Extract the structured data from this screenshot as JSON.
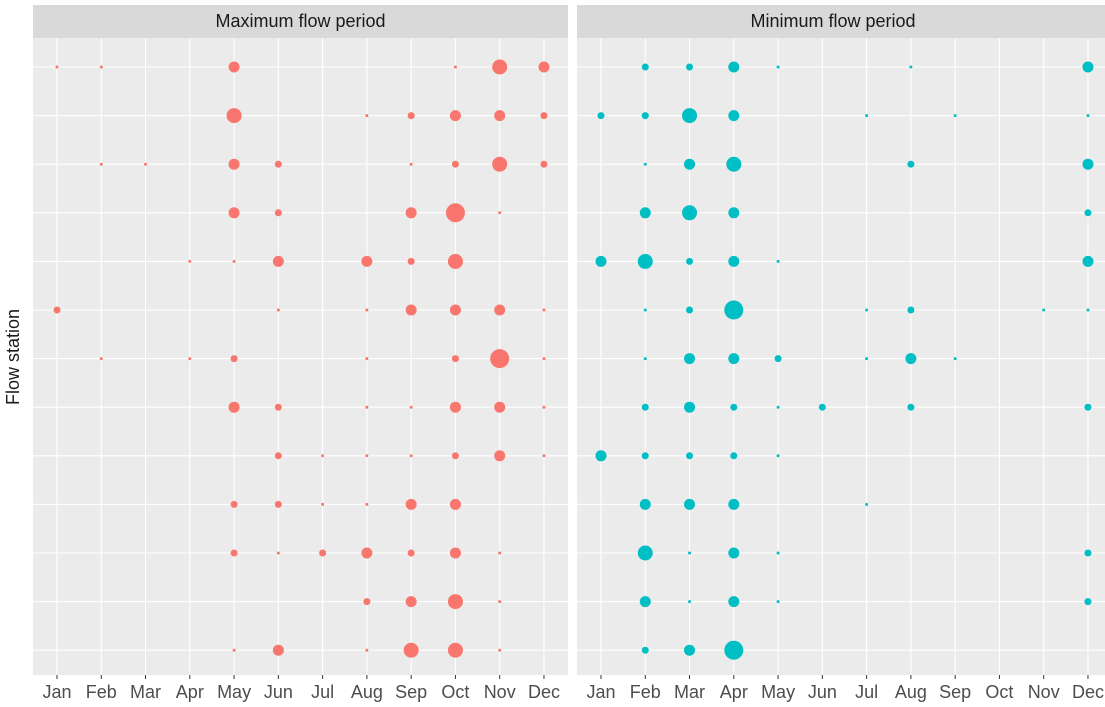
{
  "chart_data": [
    {
      "type": "dot",
      "title": "Maximum flow period",
      "y_label": "Flow station",
      "color": "#f8766d",
      "grid": true,
      "categories": [
        "Jan",
        "Feb",
        "Mar",
        "Apr",
        "May",
        "Jun",
        "Jul",
        "Aug",
        "Sep",
        "Oct",
        "Nov",
        "Dec"
      ],
      "series": [
        {
          "values": [
            1,
            1,
            null,
            null,
            3,
            null,
            null,
            null,
            null,
            1,
            4,
            3
          ]
        },
        {
          "values": [
            null,
            null,
            null,
            null,
            4,
            null,
            null,
            1,
            2,
            3,
            3,
            2
          ]
        },
        {
          "values": [
            null,
            1,
            1,
            null,
            3,
            2,
            null,
            null,
            1,
            2,
            4,
            2
          ]
        },
        {
          "values": [
            null,
            null,
            null,
            null,
            3,
            2,
            null,
            null,
            3,
            5,
            1,
            null
          ]
        },
        {
          "values": [
            null,
            null,
            null,
            1,
            1,
            3,
            null,
            3,
            2,
            4,
            null,
            null
          ]
        },
        {
          "values": [
            2,
            null,
            null,
            null,
            null,
            1,
            null,
            1,
            3,
            3,
            3,
            1
          ]
        },
        {
          "values": [
            null,
            1,
            null,
            1,
            2,
            null,
            null,
            1,
            null,
            2,
            5,
            1
          ]
        },
        {
          "values": [
            null,
            null,
            null,
            null,
            3,
            2,
            null,
            1,
            1,
            3,
            3,
            1
          ]
        },
        {
          "values": [
            null,
            null,
            null,
            null,
            null,
            2,
            1,
            1,
            1,
            2,
            3,
            1
          ]
        },
        {
          "values": [
            null,
            null,
            null,
            null,
            2,
            2,
            1,
            1,
            3,
            3,
            null,
            null
          ]
        },
        {
          "values": [
            null,
            null,
            null,
            null,
            2,
            1,
            2,
            3,
            2,
            3,
            1,
            null
          ]
        },
        {
          "values": [
            null,
            null,
            null,
            null,
            null,
            null,
            null,
            2,
            3,
            4,
            1,
            null
          ]
        },
        {
          "values": [
            null,
            null,
            null,
            null,
            1,
            3,
            null,
            1,
            4,
            4,
            1,
            null
          ]
        }
      ]
    },
    {
      "type": "dot",
      "title": "Minimum flow period",
      "color": "#00bfc4",
      "grid": true,
      "categories": [
        "Jan",
        "Feb",
        "Mar",
        "Apr",
        "May",
        "Jun",
        "Jul",
        "Aug",
        "Sep",
        "Oct",
        "Nov",
        "Dec"
      ],
      "series": [
        {
          "values": [
            null,
            2,
            2,
            3,
            1,
            null,
            null,
            1,
            null,
            null,
            null,
            3
          ]
        },
        {
          "values": [
            2,
            2,
            4,
            3,
            null,
            null,
            1,
            null,
            1,
            null,
            null,
            1
          ]
        },
        {
          "values": [
            null,
            1,
            3,
            4,
            null,
            null,
            null,
            2,
            null,
            null,
            null,
            3
          ]
        },
        {
          "values": [
            null,
            3,
            4,
            3,
            null,
            null,
            null,
            null,
            null,
            null,
            null,
            2
          ]
        },
        {
          "values": [
            3,
            4,
            2,
            3,
            1,
            null,
            null,
            null,
            null,
            null,
            null,
            3
          ]
        },
        {
          "values": [
            null,
            1,
            2,
            5,
            null,
            null,
            1,
            2,
            null,
            null,
            1,
            1
          ]
        },
        {
          "values": [
            null,
            1,
            3,
            3,
            2,
            null,
            1,
            3,
            1,
            null,
            null,
            null
          ]
        },
        {
          "values": [
            null,
            2,
            3,
            2,
            1,
            2,
            null,
            2,
            null,
            null,
            null,
            2
          ]
        },
        {
          "values": [
            3,
            2,
            2,
            2,
            1,
            null,
            null,
            null,
            null,
            null,
            null,
            null
          ]
        },
        {
          "values": [
            null,
            3,
            3,
            3,
            null,
            null,
            1,
            null,
            null,
            null,
            null,
            null
          ]
        },
        {
          "values": [
            null,
            4,
            1,
            3,
            1,
            null,
            null,
            null,
            null,
            null,
            null,
            2
          ]
        },
        {
          "values": [
            null,
            3,
            1,
            3,
            1,
            null,
            null,
            null,
            null,
            null,
            null,
            2
          ]
        },
        {
          "values": [
            null,
            2,
            3,
            5,
            null,
            null,
            null,
            null,
            null,
            null,
            null,
            null
          ]
        }
      ]
    }
  ]
}
